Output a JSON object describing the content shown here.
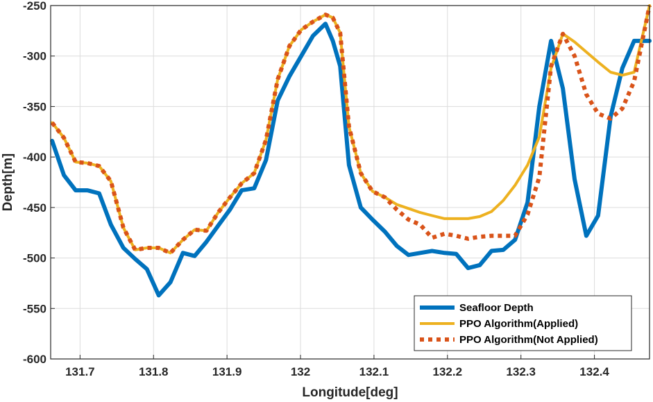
{
  "chart_data": {
    "type": "line",
    "title": "",
    "xlabel": "Longitude[deg]",
    "ylabel": "Depth[m]",
    "xlim": [
      131.66,
      132.475
    ],
    "ylim": [
      -600,
      -250
    ],
    "xticks": [
      131.7,
      131.8,
      131.9,
      132,
      132.1,
      132.2,
      132.3,
      132.4
    ],
    "xtick_labels": [
      "131.7",
      "131.8",
      "131.9",
      "132",
      "132.1",
      "132.2",
      "132.3",
      "132.4"
    ],
    "yticks": [
      -600,
      -550,
      -500,
      -450,
      -400,
      -350,
      -300,
      -250
    ],
    "ytick_labels": [
      "-600",
      "-550",
      "-500",
      "-450",
      "-400",
      "-350",
      "-300",
      "-250"
    ],
    "grid": true,
    "legend_position": "bottom-right",
    "series": [
      {
        "name": "Seafloor Depth",
        "color": "#0072BD",
        "style": "solid",
        "x": [
          131.662,
          131.678,
          131.694,
          131.71,
          131.726,
          131.742,
          131.759,
          131.775,
          131.791,
          131.807,
          131.823,
          131.84,
          131.856,
          131.872,
          131.888,
          131.904,
          131.92,
          131.937,
          131.953,
          131.969,
          131.985,
          132.001,
          132.017,
          132.034,
          132.044,
          132.054,
          132.066,
          132.082,
          132.098,
          132.115,
          132.131,
          132.147,
          132.163,
          132.179,
          132.196,
          132.212,
          132.228,
          132.244,
          132.26,
          132.276,
          132.292,
          132.309,
          132.325,
          132.341,
          132.357,
          132.373,
          132.389,
          132.405,
          132.422,
          132.438,
          132.454,
          132.475
        ],
        "y": [
          -384,
          -418,
          -433,
          -433,
          -436,
          -467,
          -490,
          -501,
          -511,
          -537,
          -524,
          -495,
          -498,
          -484,
          -468,
          -452,
          -433,
          -431,
          -403,
          -344,
          -320,
          -300,
          -280,
          -268,
          -285,
          -310,
          -408,
          -450,
          -462,
          -474,
          -488,
          -497,
          -495,
          -493,
          -495,
          -496,
          -510,
          -507,
          -493,
          -492,
          -482,
          -445,
          -350,
          -285,
          -332,
          -422,
          -478,
          -458,
          -360,
          -312,
          -285,
          -285
        ]
      },
      {
        "name": "PPO Algorithm(Applied)",
        "color": "#EDB120",
        "style": "solid",
        "x": [
          131.662,
          131.678,
          131.694,
          131.71,
          131.726,
          131.742,
          131.759,
          131.775,
          131.791,
          131.807,
          131.823,
          131.84,
          131.856,
          131.872,
          131.888,
          131.904,
          131.92,
          131.937,
          131.953,
          131.969,
          131.985,
          132.001,
          132.017,
          132.034,
          132.044,
          132.054,
          132.066,
          132.082,
          132.098,
          132.115,
          132.131,
          132.147,
          132.163,
          132.179,
          132.196,
          132.212,
          132.228,
          132.244,
          132.26,
          132.276,
          132.292,
          132.309,
          132.325,
          132.341,
          132.357,
          132.373,
          132.389,
          132.405,
          132.422,
          132.438,
          132.454,
          132.475
        ],
        "y": [
          -366,
          -381,
          -405,
          -406,
          -409,
          -424,
          -470,
          -492,
          -490,
          -490,
          -495,
          -482,
          -472,
          -473,
          -455,
          -440,
          -426,
          -416,
          -383,
          -323,
          -290,
          -274,
          -266,
          -259,
          -262,
          -277,
          -370,
          -416,
          -434,
          -440,
          -447,
          -451,
          -455,
          -458,
          -461,
          -461,
          -461,
          -459,
          -454,
          -443,
          -428,
          -408,
          -380,
          -312,
          -278,
          -286,
          -296,
          -306,
          -316,
          -319,
          -316,
          -250
        ]
      },
      {
        "name": "PPO Algorithm(Not Applied)",
        "color": "#D95319",
        "style": "dotted",
        "x": [
          131.662,
          131.678,
          131.694,
          131.71,
          131.726,
          131.742,
          131.759,
          131.775,
          131.791,
          131.807,
          131.823,
          131.84,
          131.856,
          131.872,
          131.888,
          131.904,
          131.92,
          131.937,
          131.953,
          131.969,
          131.985,
          132.001,
          132.017,
          132.034,
          132.044,
          132.054,
          132.066,
          132.082,
          132.098,
          132.115,
          132.131,
          132.147,
          132.163,
          132.179,
          132.196,
          132.212,
          132.228,
          132.244,
          132.26,
          132.276,
          132.292,
          132.309,
          132.325,
          132.341,
          132.357,
          132.373,
          132.389,
          132.405,
          132.422,
          132.438,
          132.454,
          132.475
        ],
        "y": [
          -366,
          -381,
          -405,
          -406,
          -409,
          -424,
          -470,
          -492,
          -490,
          -490,
          -495,
          -482,
          -472,
          -473,
          -455,
          -440,
          -426,
          -416,
          -383,
          -323,
          -290,
          -274,
          -266,
          -259,
          -262,
          -277,
          -370,
          -416,
          -434,
          -440,
          -452,
          -462,
          -467,
          -480,
          -476,
          -478,
          -481,
          -479,
          -478,
          -478,
          -478,
          -457,
          -420,
          -310,
          -278,
          -300,
          -338,
          -357,
          -362,
          -352,
          -325,
          -250
        ]
      }
    ]
  }
}
